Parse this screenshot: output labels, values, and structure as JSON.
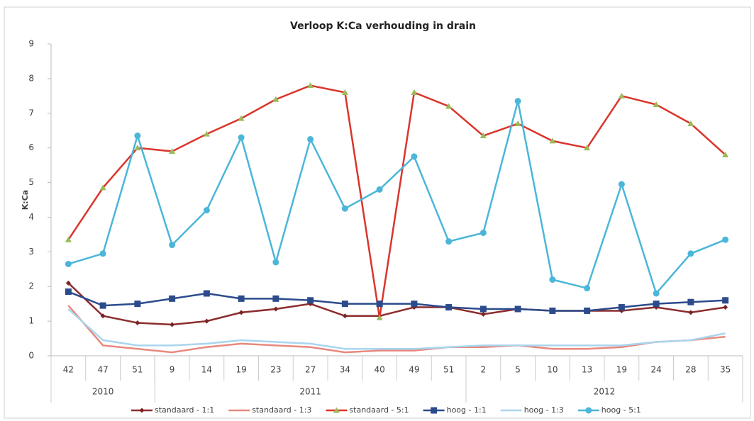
{
  "chart_data": {
    "type": "line",
    "title": "Verloop K:Ca verhouding in drain",
    "y_label": "K:Ca",
    "categories": [
      "42",
      "47",
      "51",
      "9",
      "14",
      "19",
      "23",
      "27",
      "34",
      "40",
      "49",
      "51",
      "2",
      "5",
      "10",
      "13",
      "19",
      "24",
      "28",
      "35"
    ],
    "groups": [
      {
        "label": "2010",
        "count": 3
      },
      {
        "label": "2011",
        "count": 9
      },
      {
        "label": "2012",
        "count": 8
      }
    ],
    "series": [
      {
        "name": "standaard - 1:1",
        "color": "#8c2d2d",
        "marker": "diamond",
        "marker_color": "#7a2323",
        "values": [
          2.1,
          1.15,
          0.95,
          0.9,
          1.0,
          1.25,
          1.35,
          1.5,
          1.15,
          1.15,
          1.4,
          1.4,
          1.2,
          1.35,
          1.3,
          1.3,
          1.3,
          1.4,
          1.25,
          1.4
        ]
      },
      {
        "name": "standaard - 1:3",
        "color": "#e8897e",
        "marker": "none",
        "marker_color": "#e8897e",
        "values": [
          1.45,
          0.3,
          0.2,
          0.1,
          0.25,
          0.35,
          0.3,
          0.25,
          0.1,
          0.15,
          0.15,
          0.25,
          0.25,
          0.3,
          0.2,
          0.2,
          0.25,
          0.4,
          0.45,
          0.55
        ]
      },
      {
        "name": "standaard - 5:1",
        "color": "#d9352b",
        "marker": "triangle",
        "marker_color": "#9bbb59",
        "values": [
          3.35,
          4.85,
          6.0,
          5.9,
          6.4,
          6.85,
          7.4,
          7.8,
          7.6,
          1.1,
          7.6,
          7.2,
          6.35,
          6.7,
          6.2,
          6.0,
          7.5,
          7.25,
          6.7,
          5.8
        ]
      },
      {
        "name": "hoog - 1:1",
        "color": "#2b4b8c",
        "marker": "square",
        "marker_color": "#2b4b8c",
        "values": [
          1.85,
          1.45,
          1.5,
          1.65,
          1.8,
          1.65,
          1.65,
          1.6,
          1.5,
          1.5,
          1.5,
          1.4,
          1.35,
          1.35,
          1.3,
          1.3,
          1.4,
          1.5,
          1.55,
          1.6
        ]
      },
      {
        "name": "hoog - 1:3",
        "color": "#a9d5ee",
        "marker": "none",
        "marker_color": "#a9d5ee",
        "values": [
          1.35,
          0.45,
          0.3,
          0.3,
          0.35,
          0.45,
          0.4,
          0.35,
          0.2,
          0.2,
          0.2,
          0.25,
          0.3,
          0.3,
          0.3,
          0.3,
          0.3,
          0.4,
          0.45,
          0.65
        ]
      },
      {
        "name": "hoog - 5:1",
        "color": "#4bb6d8",
        "marker": "circle",
        "marker_color": "#4bb6d8",
        "values": [
          2.65,
          2.95,
          6.35,
          3.2,
          4.2,
          6.3,
          2.7,
          6.25,
          4.25,
          4.8,
          5.75,
          3.3,
          3.55,
          7.35,
          2.2,
          1.95,
          4.95,
          1.8,
          2.95,
          3.35
        ]
      }
    ],
    "ylim": [
      0,
      9
    ],
    "yticks": [
      0,
      1,
      2,
      3,
      4,
      5,
      6,
      7,
      8,
      9
    ],
    "grid": false,
    "legend": "bottom"
  }
}
